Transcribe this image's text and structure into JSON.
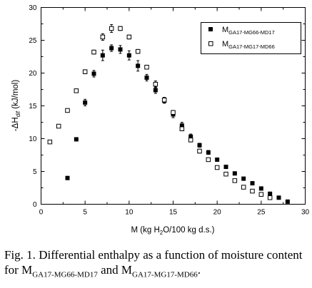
{
  "chart_data": {
    "type": "scatter",
    "title": "",
    "xlabel": "M (kg H2O/100 kg d.s.)",
    "ylabel": "-ΔHdif (kJ/mol)",
    "xlim": [
      0,
      30
    ],
    "ylim": [
      0,
      30
    ],
    "xticks": [
      "0",
      "5",
      "10",
      "15",
      "20",
      "25",
      "30"
    ],
    "yticks": [
      "0",
      "5",
      "10",
      "15",
      "20",
      "25",
      "30"
    ],
    "legend_placement": "top-right",
    "series": [
      {
        "name": "MGA17-MG66-MD17",
        "marker": "filled-square",
        "x": [
          3,
          4,
          5,
          6,
          7,
          8,
          9,
          10,
          11,
          12,
          13,
          14,
          15,
          16,
          17,
          18,
          19,
          20,
          21,
          22,
          23,
          24,
          25,
          26,
          27,
          28
        ],
        "y": [
          4.0,
          9.9,
          15.5,
          19.9,
          22.7,
          23.8,
          23.6,
          22.7,
          21.1,
          19.3,
          17.4,
          15.8,
          13.7,
          12.0,
          10.3,
          9.0,
          7.9,
          6.8,
          5.7,
          4.7,
          3.9,
          3.2,
          2.4,
          1.6,
          1.0,
          0.4
        ],
        "error": [
          0.15,
          0.15,
          0.5,
          0.5,
          0.8,
          0.5,
          0.6,
          0.7,
          0.8,
          0.5,
          0.5,
          0.4,
          0.5,
          0.5,
          0.4,
          0.3,
          0.3,
          0.2,
          0.2,
          0.2,
          0.2,
          0.15,
          0.15,
          0.15,
          0.15,
          0.15
        ]
      },
      {
        "name": "MGA17-MG17-MD66",
        "marker": "open-square",
        "x": [
          1,
          2,
          3,
          4,
          5,
          6,
          7,
          8,
          9,
          10,
          11,
          12,
          13,
          14,
          15,
          16,
          17,
          18,
          19,
          20,
          21,
          22,
          23,
          24,
          25,
          26
        ],
        "y": [
          9.5,
          11.9,
          14.3,
          17.3,
          20.2,
          23.2,
          25.5,
          26.8,
          26.8,
          25.5,
          23.3,
          20.9,
          18.3,
          15.9,
          14.0,
          11.5,
          9.8,
          8.1,
          6.8,
          5.6,
          4.6,
          3.6,
          2.6,
          2.0,
          1.5,
          1.0
        ],
        "error": [
          0.15,
          0.2,
          0.2,
          0.2,
          0.3,
          0.3,
          0.5,
          0.6,
          0.3,
          0.3,
          0.3,
          0.3,
          0.5,
          0.4,
          0.3,
          0.3,
          0.3,
          0.3,
          0.2,
          0.2,
          0.2,
          0.2,
          0.15,
          0.15,
          0.15,
          0.15
        ]
      }
    ]
  },
  "legend": {
    "entry1": {
      "base": "M",
      "sub": "GA17-MG66-MD17"
    },
    "entry2": {
      "base": "M",
      "sub": "GA17-MG17-MD66"
    }
  },
  "axes": {
    "xlabel_pre": "M (kg H",
    "xlabel_sub": "2",
    "xlabel_post": "O/100 kg d.s.)",
    "ylabel_pre": "-ΔH",
    "ylabel_sub": "dif",
    "ylabel_post": " (kJ/mol)"
  },
  "caption": {
    "fig_label": "Fig. 1.",
    "text1": "Differential enthalpy as a function of moisture content for M",
    "sub1": "GA17-MG66-MD17",
    "text2": " and M",
    "sub2": "GA17-MG17-MD66",
    "text3": "."
  }
}
